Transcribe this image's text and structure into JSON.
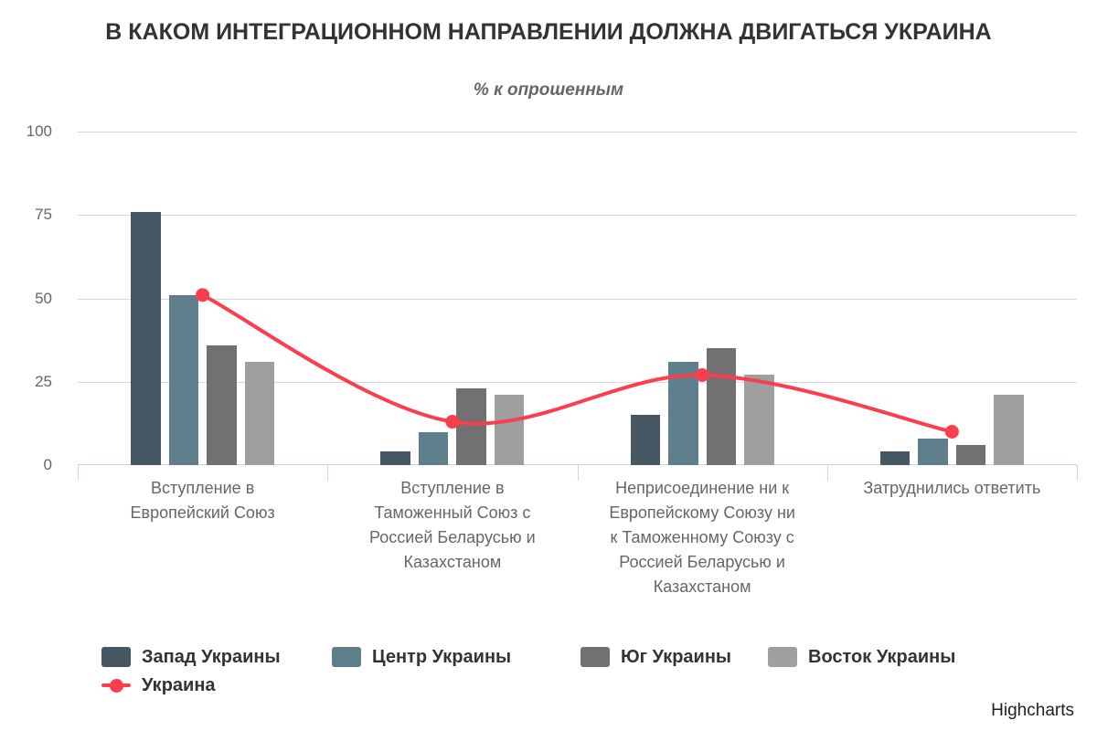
{
  "chart": {
    "title": "В КАКОМ ИНТЕГРАЦИОННОМ НАПРАВЛЕНИИ ДОЛЖНА ДВИГАТЬСЯ УКРАИНА",
    "subtitle": "% к опрошенным",
    "credits": "Highcharts"
  },
  "chart_data": {
    "type": "bar",
    "combo": "grouped columns with spline overlay",
    "title": "В КАКОМ ИНТЕГРАЦИОННОМ НАПРАВЛЕНИИ ДОЛЖНА ДВИГАТЬСЯ УКРАИНА",
    "subtitle": "% к опрошенным",
    "categories": [
      "Вступление в\nЕвропейский Союз",
      "Вступление в\nТаможенный Союз с\nРоссией Беларусью и\nКазахстаном",
      "Неприсоединение ни к\nЕвропейскому Союзу ни\nк Таможенному Союзу с\nРоссией Беларусью и\nКазахстаном",
      "Затруднились ответить"
    ],
    "series": [
      {
        "name": "Запад Украины",
        "type": "column",
        "color": "#455863",
        "values": [
          76,
          4,
          15,
          4
        ]
      },
      {
        "name": "Центр Украины",
        "type": "column",
        "color": "#5f7f8d",
        "values": [
          51,
          10,
          31,
          8
        ]
      },
      {
        "name": "Юг Украины",
        "type": "column",
        "color": "#717171",
        "values": [
          36,
          23,
          35,
          6
        ]
      },
      {
        "name": "Восток Украины",
        "type": "column",
        "color": "#9f9f9f",
        "values": [
          31,
          21,
          27,
          21
        ]
      },
      {
        "name": "Украина",
        "type": "spline",
        "color": "#fa3e4d",
        "values": [
          51,
          13,
          27,
          10
        ]
      }
    ],
    "xlabel": "",
    "ylabel": "",
    "yticks": [
      0,
      25,
      50,
      75,
      100
    ],
    "ylim": [
      0,
      100
    ],
    "grid": true,
    "grid_color": "#d8d8d8",
    "axis_color": "#ccd6eb",
    "legend_position": "bottom-left"
  }
}
